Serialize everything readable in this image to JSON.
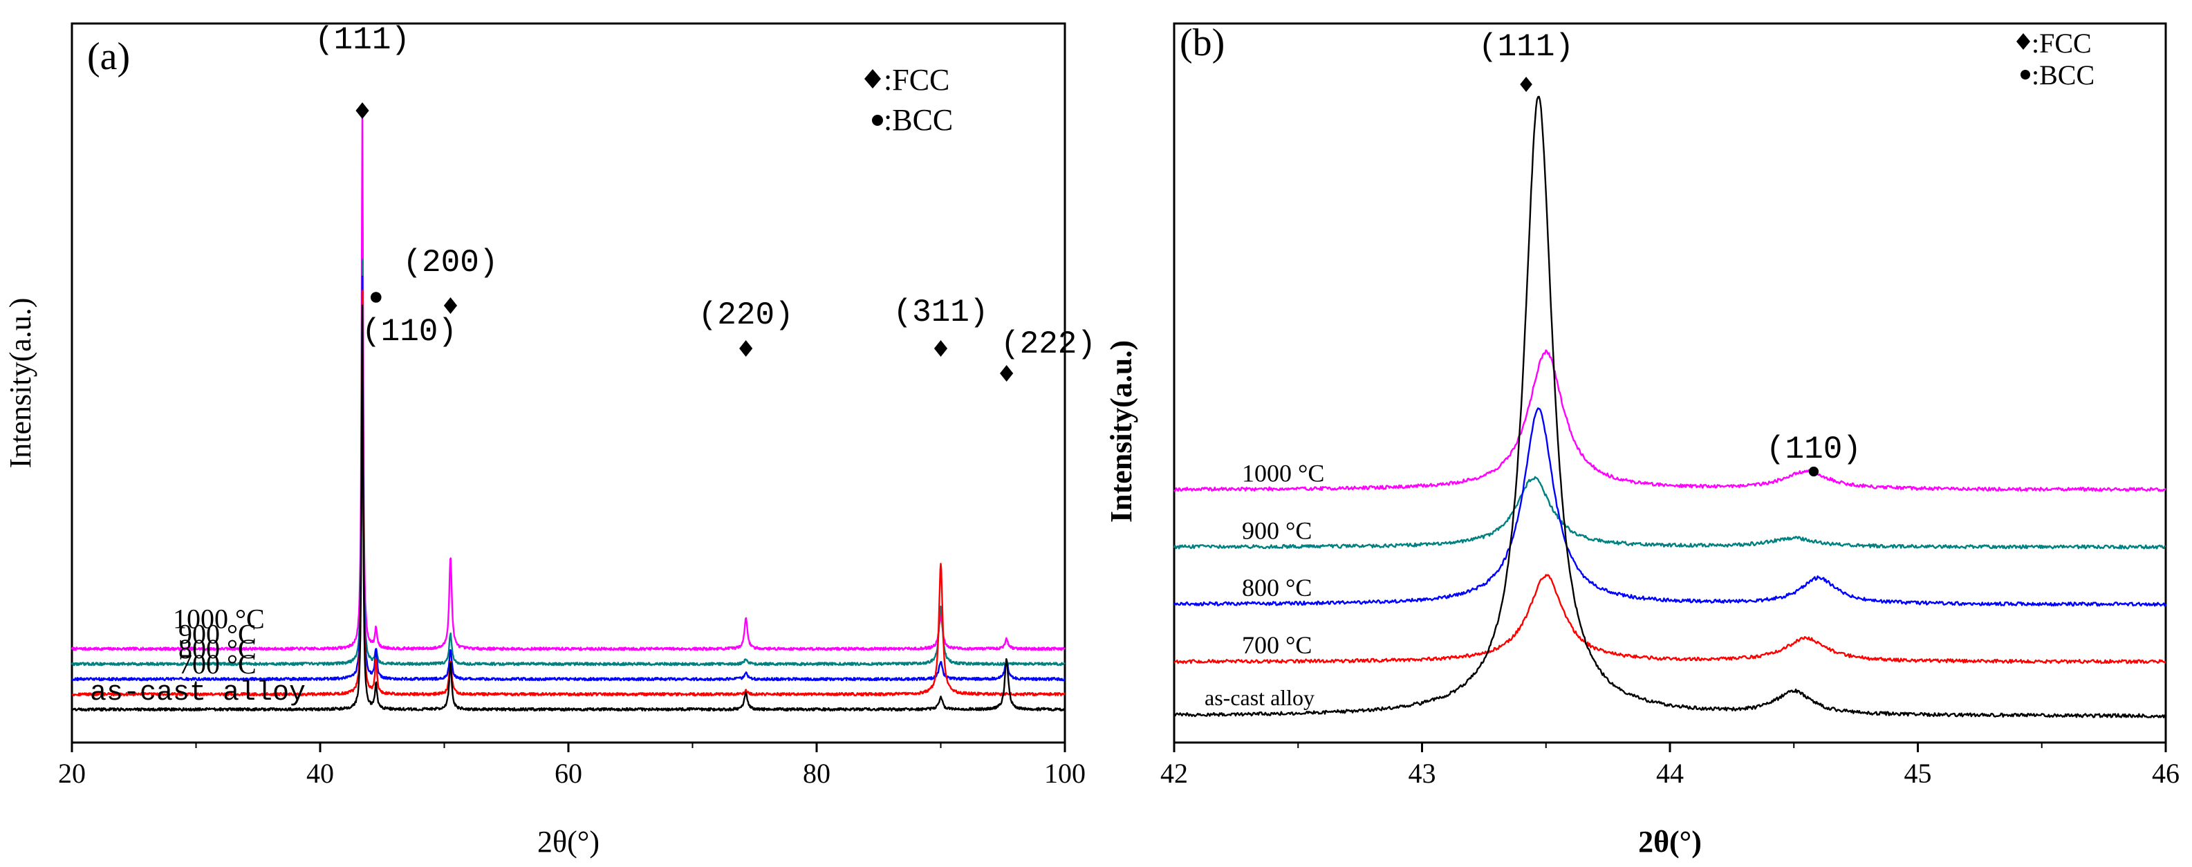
{
  "chart_data": [
    {
      "type": "line",
      "panel_label": "(a)",
      "xlabel": "2θ(°)",
      "ylabel": "Intensity(a.u.)",
      "xlim": [
        20,
        100
      ],
      "xticks": [
        "20",
        "40",
        "60",
        "80",
        "100"
      ],
      "legend": [
        {
          "symbol": "diamond",
          "label": ":FCC"
        },
        {
          "symbol": "circle",
          "label": ":BCC"
        }
      ],
      "series": [
        {
          "name": "1000 °C",
          "color": "#ff00ff",
          "baseline": 0.36,
          "peaks": [
            [
              43.4,
              3.2,
              0.15
            ],
            [
              44.5,
              0.12,
              0.2
            ],
            [
              50.5,
              0.55,
              0.25
            ],
            [
              74.3,
              0.18,
              0.3
            ],
            [
              90.0,
              0.2,
              0.35
            ],
            [
              95.3,
              0.06,
              0.3
            ]
          ]
        },
        {
          "name": "900 °C",
          "color": "#008080",
          "baseline": 0.27,
          "peaks": [
            [
              43.4,
              2.4,
              0.15
            ],
            [
              44.5,
              0.08,
              0.2
            ],
            [
              50.5,
              0.18,
              0.25
            ],
            [
              74.3,
              0.03,
              0.3
            ],
            [
              90.0,
              0.35,
              0.35
            ]
          ]
        },
        {
          "name": "800 °C",
          "color": "#0000ff",
          "baseline": 0.18,
          "peaks": [
            [
              43.4,
              2.4,
              0.15
            ],
            [
              44.5,
              0.18,
              0.2
            ],
            [
              50.5,
              0.18,
              0.25
            ],
            [
              74.3,
              0.04,
              0.3
            ],
            [
              90.0,
              0.1,
              0.35
            ],
            [
              95.3,
              0.1,
              0.35
            ]
          ]
        },
        {
          "name": "700 °C",
          "color": "#ff0000",
          "baseline": 0.09,
          "peaks": [
            [
              43.4,
              2.4,
              0.15
            ],
            [
              44.5,
              0.2,
              0.2
            ],
            [
              50.5,
              0.2,
              0.25
            ],
            [
              74.3,
              0.02,
              0.3
            ],
            [
              90.0,
              0.78,
              0.35
            ]
          ]
        },
        {
          "name": "as-cast alloy",
          "color": "#000000",
          "baseline": 0.0,
          "peaks": [
            [
              43.4,
              2.4,
              0.15
            ],
            [
              44.5,
              0.15,
              0.2
            ],
            [
              50.5,
              0.28,
              0.25
            ],
            [
              74.3,
              0.1,
              0.3
            ],
            [
              90.0,
              0.07,
              0.35
            ],
            [
              95.3,
              0.3,
              0.35
            ]
          ]
        }
      ],
      "annotations": [
        {
          "text": "(111)",
          "x": 43.4,
          "marker": "diamond"
        },
        {
          "text": "(110)",
          "x": 44.5,
          "marker": "circle"
        },
        {
          "text": "(200)",
          "x": 50.5,
          "marker": "diamond"
        },
        {
          "text": "(220)",
          "x": 74.3,
          "marker": "diamond"
        },
        {
          "text": "(311)",
          "x": 90.0,
          "marker": "diamond"
        },
        {
          "text": "(222)",
          "x": 95.3,
          "marker": "diamond"
        }
      ]
    },
    {
      "type": "line",
      "panel_label": "(b)",
      "xlabel": "2θ(°)",
      "ylabel": "Intensity(a.u.)",
      "xlim": [
        42,
        46
      ],
      "xticks": [
        "42",
        "43",
        "44",
        "45",
        "46"
      ],
      "legend": [
        {
          "symbol": "diamond",
          "label": ":FCC"
        },
        {
          "symbol": "circle",
          "label": ":BCC"
        }
      ],
      "series": [
        {
          "name": "1000 °C",
          "color": "#ff00ff",
          "baseline": 0.395,
          "peaks": [
            [
              43.5,
              0.24,
              0.17
            ],
            [
              44.55,
              0.03,
              0.22
            ]
          ]
        },
        {
          "name": "900 °C",
          "color": "#008080",
          "baseline": 0.295,
          "peaks": [
            [
              43.45,
              0.12,
              0.17
            ],
            [
              44.5,
              0.015,
              0.22
            ]
          ]
        },
        {
          "name": "800 °C",
          "color": "#0000ff",
          "baseline": 0.195,
          "peaks": [
            [
              43.47,
              0.34,
              0.15
            ],
            [
              44.6,
              0.045,
              0.17
            ]
          ]
        },
        {
          "name": "700 °C",
          "color": "#ff0000",
          "baseline": 0.095,
          "peaks": [
            [
              43.5,
              0.15,
              0.17
            ],
            [
              44.55,
              0.04,
              0.2
            ]
          ]
        },
        {
          "name": "as-cast alloy",
          "color": "#000000",
          "baseline": 0.0,
          "peaks": [
            [
              43.47,
              1.08,
              0.14
            ],
            [
              44.5,
              0.04,
              0.17
            ]
          ]
        }
      ],
      "annotations": [
        {
          "text": "(111)",
          "x": 43.42,
          "marker": "diamond"
        },
        {
          "text": "(110)",
          "x": 44.58,
          "marker": "circle"
        }
      ]
    }
  ]
}
